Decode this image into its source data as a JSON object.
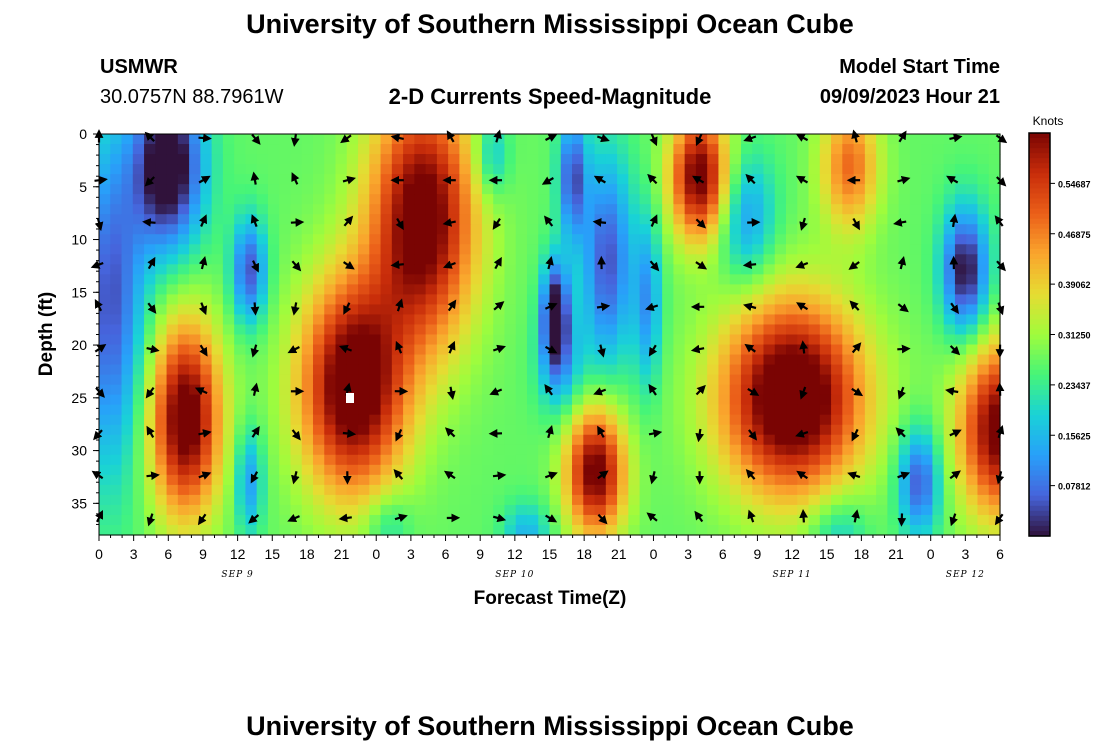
{
  "titles": {
    "main": "University of Southern Mississippi Ocean Cube",
    "repeat": "University of Southern Mississippi Ocean Cube"
  },
  "station": {
    "name": "USMWR",
    "coords": "30.0757N  88.7961W"
  },
  "model": {
    "label": "Model Start Time",
    "time": "09/09/2023 Hour 21"
  },
  "chart_data": {
    "type": "heatmap",
    "title": "2-D Currents Speed-Magnitude",
    "xlabel": "Forecast Time(Z)",
    "ylabel": "Depth (ft)",
    "x_range_hours": [
      0,
      78
    ],
    "y_range_ft": [
      0,
      38
    ],
    "y_ticks": [
      0,
      5,
      10,
      15,
      20,
      25,
      30,
      35
    ],
    "x_tick_labels": [
      "0",
      "3",
      "6",
      "9",
      "12",
      "15",
      "18",
      "21",
      "0",
      "3",
      "6",
      "9",
      "12",
      "15",
      "18",
      "21",
      "0",
      "3",
      "6",
      "9",
      "12",
      "15",
      "18",
      "21",
      "0",
      "3",
      "6"
    ],
    "date_labels": [
      {
        "label": "SEP 9",
        "hour": 12
      },
      {
        "label": "SEP 10",
        "hour": 36
      },
      {
        "label": "SEP 11",
        "hour": 60
      },
      {
        "label": "SEP 12",
        "hour": 75
      }
    ],
    "colorbar": {
      "unit": "Knots",
      "min": 0.0,
      "max": 0.625,
      "tick_labels": [
        "0.54687",
        "0.46875",
        "0.39062",
        "0.31250",
        "0.23437",
        "0.15625",
        "0.07812"
      ],
      "tick_values": [
        0.54687,
        0.46875,
        0.39062,
        0.3125,
        0.23437,
        0.15625,
        0.07812
      ]
    },
    "speed_features": [
      {
        "hour": 6,
        "depth": 3,
        "speed": -0.33,
        "hw": 3,
        "hd": 8
      },
      {
        "hour": 1,
        "depth": 16,
        "speed": -0.22,
        "hw": 3,
        "hd": 16
      },
      {
        "hour": 7.5,
        "depth": 27,
        "speed": 0.4,
        "hw": 3,
        "hd": 9
      },
      {
        "hour": 13,
        "depth": 13,
        "speed": -0.22,
        "hw": 1.5,
        "hd": 5
      },
      {
        "hour": 13,
        "depth": 33,
        "speed": -0.15,
        "hw": 1.2,
        "hd": 5
      },
      {
        "hour": 22,
        "depth": 24,
        "speed": 0.42,
        "hw": 4.5,
        "hd": 10
      },
      {
        "hour": 28,
        "depth": 8,
        "speed": 0.4,
        "hw": 4.5,
        "hd": 12
      },
      {
        "hour": 34,
        "depth": 2,
        "speed": -0.12,
        "hw": 1.5,
        "hd": 4
      },
      {
        "hour": 37,
        "depth": 38,
        "speed": -0.12,
        "hw": 2,
        "hd": 3
      },
      {
        "hour": 41,
        "depth": 4,
        "speed": -0.22,
        "hw": 1.2,
        "hd": 6
      },
      {
        "hour": 39.5,
        "depth": 17,
        "speed": -0.3,
        "hw": 1.2,
        "hd": 5
      },
      {
        "hour": 40,
        "depth": 22,
        "speed": -0.12,
        "hw": 2,
        "hd": 5
      },
      {
        "hour": 44,
        "depth": 12,
        "speed": -0.22,
        "hw": 2.2,
        "hd": 10
      },
      {
        "hour": 47.5,
        "depth": 16,
        "speed": -0.15,
        "hw": 1.2,
        "hd": 8
      },
      {
        "hour": 43,
        "depth": 32,
        "speed": 0.38,
        "hw": 2.5,
        "hd": 6
      },
      {
        "hour": 52,
        "depth": 4,
        "speed": 0.38,
        "hw": 2.5,
        "hd": 6
      },
      {
        "hour": 60,
        "depth": 25,
        "speed": 0.45,
        "hw": 6,
        "hd": 9
      },
      {
        "hour": 56,
        "depth": 8,
        "speed": -0.15,
        "hw": 2.5,
        "hd": 6
      },
      {
        "hour": 65,
        "depth": 3,
        "speed": 0.22,
        "hw": 2.5,
        "hd": 6
      },
      {
        "hour": 64,
        "depth": 38,
        "speed": -0.1,
        "hw": 2.5,
        "hd": 4
      },
      {
        "hour": 71,
        "depth": 33,
        "speed": -0.22,
        "hw": 1.8,
        "hd": 5
      },
      {
        "hour": 75,
        "depth": 13,
        "speed": -0.28,
        "hw": 2,
        "hd": 6
      },
      {
        "hour": 78,
        "depth": 28,
        "speed": 0.38,
        "hw": 3.5,
        "hd": 8
      },
      {
        "hour": 25,
        "depth": 37,
        "speed": -0.08,
        "hw": 2,
        "hd": 3
      }
    ],
    "vector_hours": [
      0,
      4.5,
      9,
      13.5,
      17,
      21.5,
      26,
      30.5,
      34.5,
      39,
      43.5,
      48,
      52,
      56.5,
      61,
      65.5,
      69.5,
      74,
      78
    ],
    "vector_depths": [
      0,
      4,
      8,
      12,
      16,
      20,
      24,
      28,
      32,
      36
    ],
    "vectors": [
      {
        "hour": 4.5,
        "depth": 0,
        "dir": 315
      },
      {
        "hour": 4.5,
        "depth": 4,
        "dir": 225
      },
      {
        "hour": 9,
        "depth": 4,
        "dir": 60
      },
      {
        "hour": 13.5,
        "depth": 4,
        "dir": 350
      },
      {
        "hour": 17,
        "depth": 4,
        "dir": 335
      },
      {
        "hour": 21.5,
        "depth": 4,
        "dir": 75
      },
      {
        "hour": 26,
        "depth": 4,
        "dir": 270
      },
      {
        "hour": 30.5,
        "depth": 4,
        "dir": 270
      },
      {
        "hour": 34.5,
        "depth": 4,
        "dir": 270
      },
      {
        "hour": 39,
        "depth": 4,
        "dir": 240
      },
      {
        "hour": 43.5,
        "depth": 4,
        "dir": 300
      },
      {
        "hour": 48,
        "depth": 4,
        "dir": 315
      },
      {
        "hour": 52,
        "depth": 4,
        "dir": 300
      },
      {
        "hour": 56.5,
        "depth": 4,
        "dir": 315
      },
      {
        "hour": 61,
        "depth": 4,
        "dir": 300
      },
      {
        "hour": 65.5,
        "depth": 4,
        "dir": 270
      },
      {
        "hour": 69.5,
        "depth": 4,
        "dir": 75
      },
      {
        "hour": 74,
        "depth": 4,
        "dir": 300
      },
      {
        "hour": 78,
        "depth": 4,
        "dir": 135
      }
    ]
  }
}
